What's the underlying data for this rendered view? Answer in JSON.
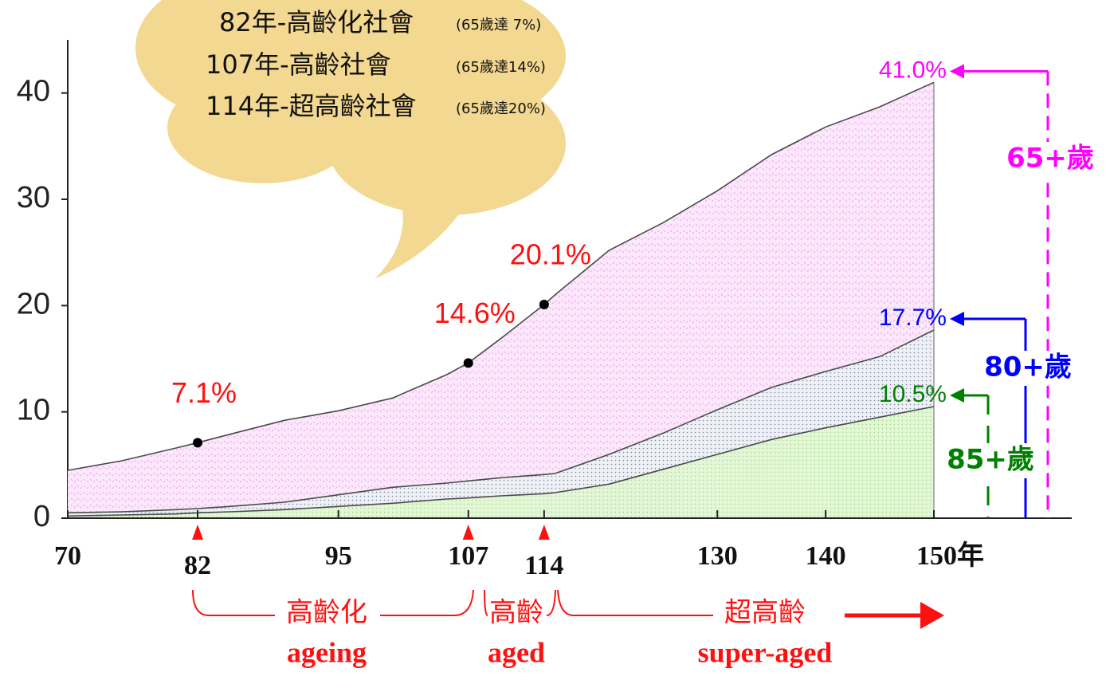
{
  "chart_data": {
    "type": "area",
    "notes": [
      {
        "text": "82年-高齡化社會",
        "detail": "(65歲達 7%)"
      },
      {
        "text": "107年-高齡社會",
        "detail": "(65歲達14%)"
      },
      {
        "text": "114年-超高齡社會",
        "detail": "(65歲達20%)"
      }
    ],
    "x": [
      70,
      75,
      80,
      82,
      85,
      90,
      95,
      100,
      105,
      107,
      110,
      114,
      115,
      120,
      125,
      130,
      135,
      140,
      145,
      150
    ],
    "series": [
      {
        "name": "65+歲",
        "color": "#ff00ff",
        "values": [
          4.5,
          5.4,
          6.6,
          7.1,
          7.9,
          9.2,
          10.1,
          11.3,
          13.5,
          14.6,
          16.9,
          20.1,
          21.0,
          25.2,
          27.8,
          30.8,
          34.2,
          36.8,
          38.7,
          41.0
        ],
        "value_labels": [
          null,
          null,
          null,
          "7.1%",
          null,
          null,
          null,
          null,
          null,
          "14.6%",
          null,
          "20.1%",
          null,
          null,
          null,
          null,
          null,
          null,
          null,
          null
        ],
        "end_label": "41.0%"
      },
      {
        "name": "80+歲",
        "color": "#0000ff",
        "values": [
          0.5,
          0.6,
          0.8,
          0.9,
          1.1,
          1.5,
          2.2,
          2.9,
          3.3,
          3.5,
          3.8,
          4.1,
          4.2,
          6.0,
          8.0,
          10.2,
          12.3,
          13.8,
          15.2,
          17.7
        ],
        "end_label": "17.7%"
      },
      {
        "name": "85+歲",
        "color": "#008000",
        "values": [
          0.2,
          0.3,
          0.4,
          0.5,
          0.6,
          0.8,
          1.1,
          1.4,
          1.8,
          1.9,
          2.1,
          2.3,
          2.4,
          3.2,
          4.6,
          6.0,
          7.4,
          8.5,
          9.5,
          10.5
        ],
        "end_label": "10.5%"
      }
    ],
    "xlim": [
      70,
      150
    ],
    "xticks": [
      70,
      82,
      95,
      107,
      114,
      130,
      140,
      {
        "value": 150,
        "label": "150年"
      }
    ],
    "ylim": [
      0,
      45
    ],
    "yticks": [
      0,
      10,
      20,
      30,
      40
    ],
    "stages": [
      {
        "label": "高齡化",
        "english": "ageing"
      },
      {
        "label": "高齡",
        "english": "aged"
      },
      {
        "label": "超高齡",
        "english": "super-aged"
      }
    ],
    "legend": "right"
  }
}
